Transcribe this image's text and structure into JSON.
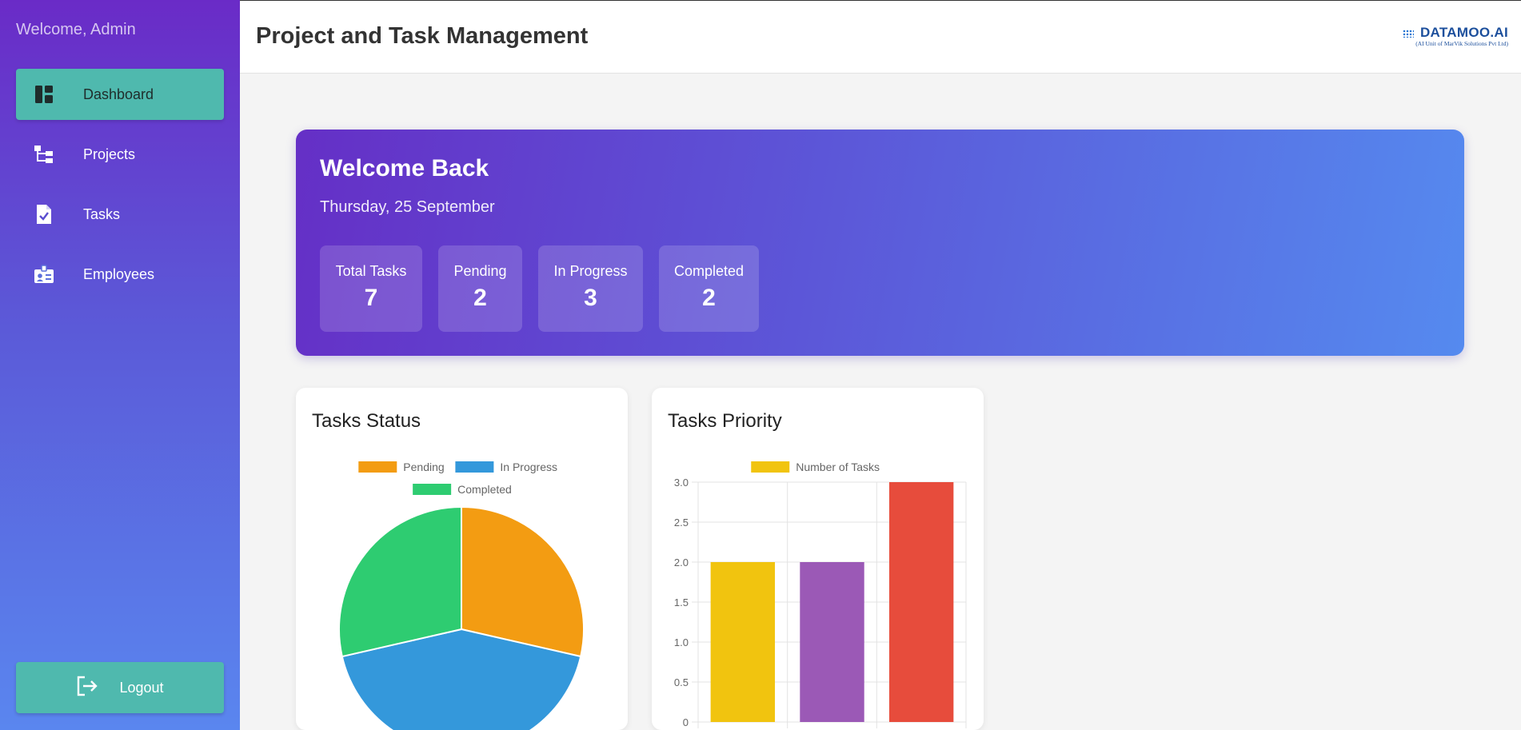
{
  "sidebar": {
    "welcome": "Welcome, Admin",
    "items": [
      {
        "label": "Dashboard",
        "icon": "dashboard-icon",
        "active": true
      },
      {
        "label": "Projects",
        "icon": "project-tree-icon",
        "active": false
      },
      {
        "label": "Tasks",
        "icon": "task-file-icon",
        "active": false
      },
      {
        "label": "Employees",
        "icon": "employee-badge-icon",
        "active": false
      }
    ],
    "logout_label": "Logout"
  },
  "header": {
    "title": "Project and Task Management",
    "logo_text": "DATAMOO.AI",
    "logo_subtext": "(AI Unit of MarVik Solutions Pvt Ltd)"
  },
  "welcome_card": {
    "title": "Welcome Back",
    "date": "Thursday, 25 September",
    "stats": [
      {
        "label": "Total Tasks",
        "value": "7"
      },
      {
        "label": "Pending",
        "value": "2"
      },
      {
        "label": "In Progress",
        "value": "3"
      },
      {
        "label": "Completed",
        "value": "2"
      }
    ]
  },
  "colors": {
    "accent": "#4fb9ae",
    "pending": "#f39c12",
    "in_progress": "#3498db",
    "completed": "#2ecc71"
  },
  "chart_data": [
    {
      "type": "pie",
      "title": "Tasks Status",
      "categories": [
        "Pending",
        "In Progress",
        "Completed"
      ],
      "values": [
        2,
        3,
        2
      ],
      "colors": [
        "#f39c12",
        "#3498db",
        "#2ecc71"
      ],
      "legend": "top"
    },
    {
      "type": "bar",
      "title": "Tasks Priority",
      "categories": [
        "",
        "",
        ""
      ],
      "series": [
        {
          "name": "Number of Tasks",
          "values": [
            2,
            2,
            3
          ]
        }
      ],
      "bar_colors": [
        "#f1c40f",
        "#9b59b6",
        "#e74c3c"
      ],
      "legend_color": "#f1c40f",
      "ylim": [
        0,
        3
      ],
      "yticks": [
        "0",
        "0.5",
        "1.0",
        "1.5",
        "2.0",
        "2.5",
        "3.0"
      ],
      "grid": true,
      "legend": "top"
    }
  ]
}
